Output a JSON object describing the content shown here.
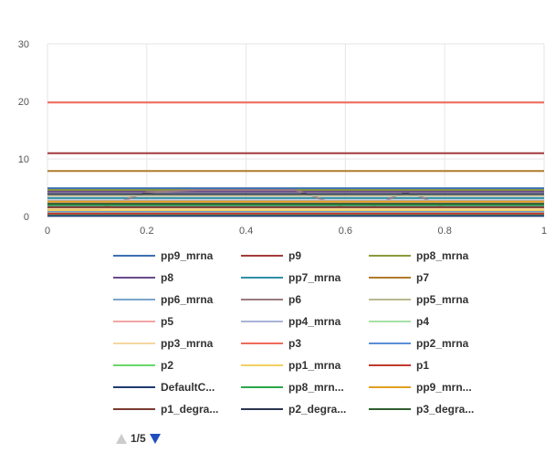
{
  "chart_data": {
    "type": "line",
    "title": "",
    "xlabel": "",
    "ylabel": "",
    "xlim": [
      0,
      1
    ],
    "ylim": [
      0,
      30
    ],
    "x_ticks": [
      "0",
      "0.2",
      "0.4",
      "0.6",
      "0.8",
      "1"
    ],
    "y_ticks": [
      "0",
      "10",
      "20",
      "30"
    ],
    "grid": true,
    "legend_position": "bottom",
    "series": [
      {
        "name": "pp9_mrna",
        "color": "#3d6fb0",
        "x": [
          0,
          1
        ],
        "y": [
          4.9,
          4.9
        ]
      },
      {
        "name": "p9",
        "color": "#a33a3a",
        "x": [
          0,
          1
        ],
        "y": [
          11.0,
          11.0
        ]
      },
      {
        "name": "pp8_mrna",
        "color": "#8a9a3a",
        "x": [
          0,
          1
        ],
        "y": [
          4.6,
          4.6
        ]
      },
      {
        "name": "p8",
        "color": "#6a4b8a",
        "x": [
          0,
          1
        ],
        "y": [
          4.3,
          4.3
        ]
      },
      {
        "name": "pp7_mrna",
        "color": "#2f8fa6",
        "x": [
          0,
          1
        ],
        "y": [
          3.2,
          3.2
        ]
      },
      {
        "name": "p7",
        "color": "#b07a2a",
        "x": [
          0,
          1
        ],
        "y": [
          7.9,
          7.9
        ]
      },
      {
        "name": "pp6_mrna",
        "color": "#7aa6cc",
        "x": [
          0,
          1
        ],
        "y": [
          1.8,
          1.8
        ]
      },
      {
        "name": "p6",
        "color": "#9a7a80",
        "x": [
          0,
          0.1,
          0.2,
          0.3,
          0.4,
          0.5,
          0.6,
          0.65,
          0.7,
          0.72,
          0.75,
          0.8,
          0.9,
          1
        ],
        "y": [
          1.2,
          1.2,
          4.2,
          4.6,
          4.6,
          4.6,
          1.5,
          1.5,
          3.5,
          4.1,
          3.5,
          1.5,
          1.5,
          1.5
        ]
      },
      {
        "name": "pp5_mrna",
        "color": "#b8b890",
        "x": [
          0,
          1
        ],
        "y": [
          3.6,
          3.6
        ]
      },
      {
        "name": "p5",
        "color": "#f2a5a5",
        "x": [
          0,
          1
        ],
        "y": [
          2.4,
          2.4
        ]
      },
      {
        "name": "pp4_mrna",
        "color": "#a9b3d8",
        "x": [
          0,
          1
        ],
        "y": [
          2.8,
          2.8
        ]
      },
      {
        "name": "p4",
        "color": "#a6e0a6",
        "x": [
          0,
          1
        ],
        "y": [
          0.6,
          0.6
        ]
      },
      {
        "name": "pp3_mrna",
        "color": "#f5d6a0",
        "x": [
          0,
          1
        ],
        "y": [
          1.4,
          1.4
        ]
      },
      {
        "name": "p3",
        "color": "#f06a5a",
        "x": [
          0,
          1
        ],
        "y": [
          19.8,
          19.8
        ]
      },
      {
        "name": "pp2_mrna",
        "color": "#5b8fd6",
        "x": [
          0,
          1
        ],
        "y": [
          0.9,
          0.9
        ]
      },
      {
        "name": "p2",
        "color": "#6ad66a",
        "x": [
          0,
          1
        ],
        "y": [
          0.3,
          0.3
        ]
      },
      {
        "name": "pp1_mrna",
        "color": "#f2d060",
        "x": [
          0,
          1
        ],
        "y": [
          1.1,
          1.1
        ]
      },
      {
        "name": "p1",
        "color": "#c0392b",
        "x": [
          0,
          1
        ],
        "y": [
          0.5,
          0.5
        ]
      },
      {
        "name": "DefaultC...",
        "color": "#1f3a70",
        "x": [
          0,
          1
        ],
        "y": [
          0.1,
          0.1
        ]
      },
      {
        "name": "pp8_mrn...",
        "color": "#2aa84a",
        "x": [
          0,
          1
        ],
        "y": [
          2.0,
          2.0
        ]
      },
      {
        "name": "pp9_mrn...",
        "color": "#e0a020",
        "x": [
          0,
          1
        ],
        "y": [
          2.6,
          2.6
        ]
      },
      {
        "name": "p1_degra...",
        "color": "#7a3a30",
        "x": [
          0,
          1
        ],
        "y": [
          1.6,
          1.6
        ]
      },
      {
        "name": "p2_degra...",
        "color": "#2a3550",
        "x": [
          0,
          1
        ],
        "y": [
          3.9,
          3.9
        ]
      },
      {
        "name": "p3_degra...",
        "color": "#2f5f30",
        "x": [
          0,
          1
        ],
        "y": [
          2.2,
          2.2
        ]
      }
    ]
  },
  "legend": {
    "page_indicator": "1/5"
  }
}
